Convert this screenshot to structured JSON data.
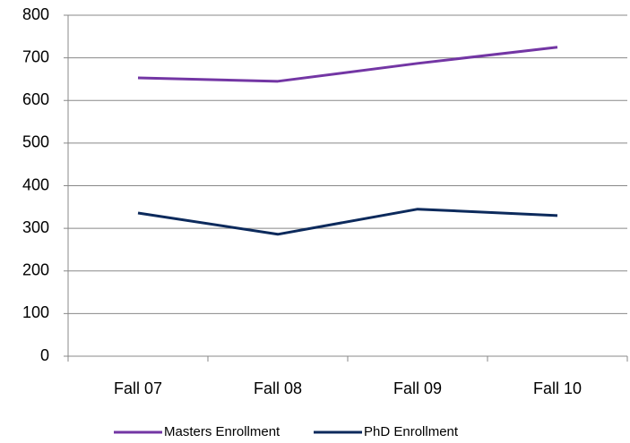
{
  "chart_data": {
    "type": "line",
    "categories": [
      "Fall 07",
      "Fall 08",
      "Fall 09",
      "Fall 10"
    ],
    "series": [
      {
        "name": "Masters Enrollment",
        "color": "#7336a4",
        "values": [
          653,
          645,
          687,
          725
        ]
      },
      {
        "name": "PhD Enrollment",
        "color": "#0c2a5c",
        "values": [
          336,
          286,
          345,
          330
        ]
      }
    ],
    "ylim": [
      0,
      800
    ],
    "yticks": [
      0,
      100,
      200,
      300,
      400,
      500,
      600,
      700,
      800
    ],
    "grid": true,
    "legend": "bottom"
  }
}
